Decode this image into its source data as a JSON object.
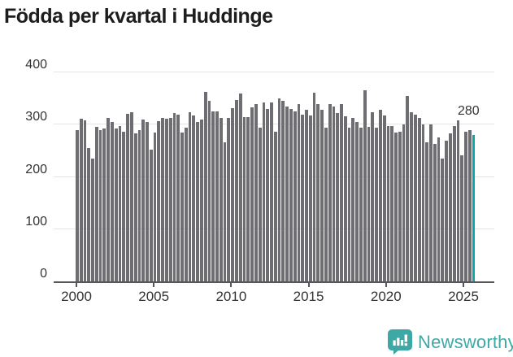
{
  "title": "Födda per kvartal i Huddinge",
  "annotation": {
    "last_value_label": "280"
  },
  "logo": {
    "text": "Newsworthy",
    "icon": "newsworthy-bars-icon"
  },
  "colors": {
    "bar": "#6d6d72",
    "accent": "#0da4a4",
    "logo_teal": "#3da8a6",
    "grid": "#e4e4e4",
    "axis": "#55555a",
    "text": "#333333"
  },
  "chart_data": {
    "type": "bar",
    "title": "Födda per kvartal i Huddinge",
    "xlabel": "",
    "ylabel": "",
    "ylim": [
      0,
      400
    ],
    "y_tick_values": [
      0,
      100,
      200,
      300,
      400
    ],
    "y_tick_labels": [
      "0",
      "100",
      "200",
      "300",
      "400"
    ],
    "x_tick_labels": [
      "2000",
      "2005",
      "2010",
      "2015",
      "2020",
      "2025"
    ],
    "grid": "horizontal",
    "legend": "none",
    "frequency": "quarterly",
    "start_period": "2000-Q1",
    "end_period": "2025-Q3",
    "highlight_last_bar": true,
    "last_value": 280,
    "values": [
      290,
      312,
      308,
      255,
      235,
      296,
      290,
      292,
      313,
      305,
      292,
      298,
      287,
      321,
      324,
      283,
      289,
      310,
      305,
      253,
      285,
      307,
      313,
      312,
      313,
      322,
      320,
      285,
      295,
      324,
      318,
      305,
      310,
      363,
      345,
      326,
      325,
      313,
      267,
      313,
      331,
      347,
      359,
      314,
      314,
      334,
      339,
      295,
      342,
      330,
      342,
      286,
      351,
      345,
      335,
      330,
      326,
      340,
      319,
      328,
      317,
      361,
      340,
      329,
      295,
      340,
      335,
      323,
      339,
      316,
      295,
      313,
      305,
      295,
      366,
      296,
      324,
      295,
      328,
      318,
      298,
      297,
      285,
      286,
      300,
      355,
      324,
      320,
      313,
      300,
      267,
      300,
      263,
      275,
      235,
      269,
      284,
      297,
      308,
      242,
      286,
      289,
      280
    ]
  }
}
